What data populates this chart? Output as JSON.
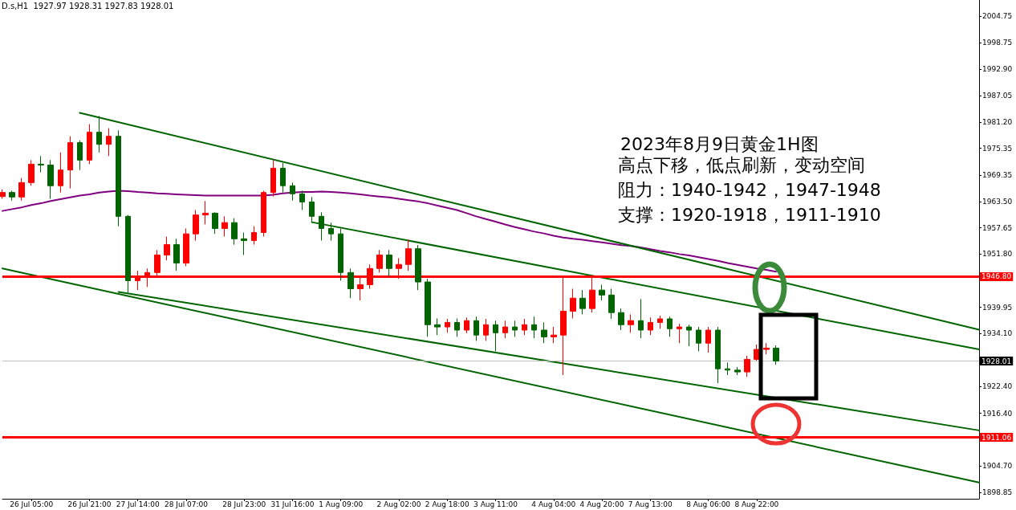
{
  "chart_data": {
    "type": "candlestick",
    "title": "2023年8月9日黄金1H图",
    "annotations": [
      "D.s,H1  1927.97 1928.31 1927.83 1928.01",
      "高点下移，低点刷新，变动空间",
      "阻力：1940-1942，1947-1948",
      "支撑：1920-1918，1911-1910"
    ],
    "categories": [
      null,
      null,
      null,
      "26 Jul 05:00",
      null,
      null,
      null,
      null,
      null,
      "26 Jul 21:00",
      null,
      null,
      null,
      null,
      "27 Jul 14:00",
      null,
      null,
      null,
      null,
      "28 Jul 07:00",
      null,
      null,
      null,
      null,
      null,
      "28 Jul 23:00",
      null,
      null,
      null,
      null,
      "31 Jul 16:00",
      null,
      null,
      null,
      null,
      "1 Aug 09:00",
      null,
      null,
      null,
      null,
      null,
      "2 Aug 02:00",
      null,
      null,
      null,
      null,
      "2 Aug 18:00",
      null,
      null,
      null,
      null,
      "3 Aug 11:00",
      null,
      null,
      null,
      null,
      null,
      "4 Aug 04:00",
      null,
      null,
      null,
      null,
      "4 Aug 20:00",
      null,
      null,
      null,
      null,
      "7 Aug 13:00",
      null,
      null,
      null,
      null,
      null,
      "8 Aug 06:00",
      null,
      null,
      null,
      null,
      "8 Aug 22:00",
      null,
      null,
      null,
      null,
      null,
      null,
      null,
      null,
      null,
      null,
      null,
      null,
      null,
      null,
      null,
      null,
      null,
      null,
      null,
      null,
      null,
      null,
      null
    ],
    "ohlc": [
      [
        1964.6,
        1966.2,
        1964.1,
        1965.5
      ],
      [
        1965.5,
        1965.9,
        1963.7,
        1964.5
      ],
      [
        1964.5,
        1968.7,
        1963.7,
        1967.7
      ],
      [
        1967.7,
        1972.7,
        1967.0,
        1971.8
      ],
      [
        1971.8,
        1973.6,
        1970.0,
        1971.6
      ],
      [
        1971.6,
        1972.7,
        1964.1,
        1967.0
      ],
      [
        1967.0,
        1974.4,
        1965.5,
        1970.5
      ],
      [
        1970.5,
        1978.0,
        1966.4,
        1976.6
      ],
      [
        1976.6,
        1977.1,
        1970.5,
        1972.7
      ],
      [
        1972.7,
        1980.7,
        1971.8,
        1978.9
      ],
      [
        1978.9,
        1982.5,
        1974.4,
        1976.2
      ],
      [
        1976.2,
        1979.8,
        1973.6,
        1978.0
      ],
      [
        1978.0,
        1979.3,
        1958.0,
        1960.2
      ],
      [
        1960.2,
        1960.5,
        1943.2,
        1945.9
      ],
      [
        1945.9,
        1948.1,
        1943.8,
        1946.8
      ],
      [
        1946.8,
        1948.6,
        1944.5,
        1947.7
      ],
      [
        1947.7,
        1952.7,
        1946.8,
        1951.6
      ],
      [
        1951.6,
        1955.7,
        1950.4,
        1953.9
      ],
      [
        1953.9,
        1955.2,
        1948.1,
        1949.8
      ],
      [
        1949.8,
        1957.5,
        1949.1,
        1956.3
      ],
      [
        1956.3,
        1961.6,
        1954.8,
        1960.5
      ],
      [
        1960.5,
        1963.6,
        1958.4,
        1960.9
      ],
      [
        1960.9,
        1961.1,
        1956.3,
        1957.5
      ],
      [
        1957.5,
        1960.2,
        1955.7,
        1958.8
      ],
      [
        1958.8,
        1959.8,
        1953.9,
        1955.2
      ],
      [
        1955.2,
        1956.6,
        1951.6,
        1954.8
      ],
      [
        1954.8,
        1958.0,
        1953.9,
        1956.6
      ],
      [
        1956.6,
        1965.9,
        1955.7,
        1965.5
      ],
      [
        1965.5,
        1972.7,
        1964.6,
        1970.9
      ],
      [
        1970.9,
        1972.1,
        1965.5,
        1967.0
      ],
      [
        1967.0,
        1967.7,
        1963.7,
        1965.2
      ],
      [
        1965.2,
        1965.9,
        1961.6,
        1963.4
      ],
      [
        1963.4,
        1964.5,
        1958.8,
        1960.2
      ],
      [
        1960.2,
        1961.1,
        1954.8,
        1957.5
      ],
      [
        1957.5,
        1958.8,
        1954.8,
        1956.3
      ],
      [
        1956.3,
        1957.5,
        1945.9,
        1947.7
      ],
      [
        1947.7,
        1948.6,
        1942.0,
        1944.1
      ],
      [
        1944.1,
        1946.8,
        1941.5,
        1945.0
      ],
      [
        1945.0,
        1949.5,
        1944.1,
        1948.6
      ],
      [
        1948.6,
        1952.7,
        1947.7,
        1951.6
      ],
      [
        1951.6,
        1952.7,
        1946.8,
        1948.6
      ],
      [
        1948.6,
        1950.9,
        1946.3,
        1949.5
      ],
      [
        1949.5,
        1955.0,
        1948.1,
        1953.0
      ],
      [
        1953.0,
        1953.8,
        1943.8,
        1945.6
      ],
      [
        1945.6,
        1946.3,
        1933.4,
        1936.1
      ],
      [
        1936.1,
        1937.5,
        1933.8,
        1935.6
      ],
      [
        1935.6,
        1937.4,
        1934.3,
        1936.6
      ],
      [
        1936.6,
        1937.5,
        1933.4,
        1934.9
      ],
      [
        1934.9,
        1937.7,
        1934.2,
        1937.0
      ],
      [
        1937.0,
        1937.9,
        1932.5,
        1933.8
      ],
      [
        1933.8,
        1937.4,
        1932.5,
        1936.1
      ],
      [
        1936.1,
        1937.0,
        1930.2,
        1934.3
      ],
      [
        1934.3,
        1937.0,
        1933.1,
        1935.6
      ],
      [
        1935.6,
        1937.0,
        1933.4,
        1934.9
      ],
      [
        1934.9,
        1937.4,
        1933.8,
        1936.1
      ],
      [
        1936.1,
        1937.9,
        1933.1,
        1934.9
      ],
      [
        1934.9,
        1936.6,
        1932.0,
        1933.4
      ],
      [
        1933.4,
        1935.6,
        1932.0,
        1933.8
      ],
      [
        1933.8,
        1947.0,
        1924.9,
        1939.1
      ],
      [
        1939.1,
        1944.1,
        1937.5,
        1942.0
      ],
      [
        1942.0,
        1943.8,
        1938.4,
        1939.7
      ],
      [
        1939.7,
        1946.8,
        1938.8,
        1943.8
      ],
      [
        1943.8,
        1945.0,
        1941.5,
        1942.7
      ],
      [
        1942.7,
        1944.1,
        1937.4,
        1938.8
      ],
      [
        1938.8,
        1939.7,
        1934.9,
        1936.1
      ],
      [
        1936.1,
        1938.4,
        1934.3,
        1937.0
      ],
      [
        1937.0,
        1941.8,
        1933.1,
        1934.9
      ],
      [
        1934.9,
        1937.7,
        1933.8,
        1936.6
      ],
      [
        1936.6,
        1938.1,
        1935.2,
        1937.4
      ],
      [
        1937.4,
        1937.9,
        1933.4,
        1935.2
      ],
      [
        1935.2,
        1936.3,
        1932.0,
        1935.6
      ],
      [
        1935.6,
        1936.1,
        1931.3,
        1934.9
      ],
      [
        1934.9,
        1935.6,
        1930.2,
        1932.0
      ],
      [
        1932.0,
        1935.6,
        1929.9,
        1934.9
      ],
      [
        1934.9,
        1935.6,
        1923.1,
        1926.3
      ],
      [
        1926.3,
        1927.7,
        1924.9,
        1926.0
      ],
      [
        1926.0,
        1926.7,
        1924.9,
        1925.6
      ],
      [
        1925.6,
        1929.2,
        1924.5,
        1928.4
      ],
      [
        1928.4,
        1931.7,
        1928.1,
        1930.6
      ],
      [
        1930.6,
        1932.0,
        1929.5,
        1930.9
      ],
      [
        1930.9,
        1931.5,
        1927.2,
        1928.01
      ],
      null,
      null,
      null,
      null,
      null,
      null,
      null,
      null,
      null,
      null,
      null,
      null,
      null,
      null,
      null,
      null,
      null,
      null,
      null,
      null,
      null
    ],
    "colors": [
      "#ff0000",
      "#006400",
      "#ff0000",
      "#ff0000",
      "#006400",
      "#006400",
      "#ff0000",
      "#ff0000",
      "#006400",
      "#ff0000",
      "#006400",
      "#ff0000",
      "#006400",
      "#006400",
      "#ff0000",
      "#ff0000",
      "#ff0000",
      "#ff0000",
      "#006400",
      "#ff0000",
      "#ff0000",
      "#ff0000",
      "#006400",
      "#ff0000",
      "#006400",
      "#006400",
      "#ff0000",
      "#ff0000",
      "#ff0000",
      "#006400",
      "#006400",
      "#006400",
      "#006400",
      "#006400",
      "#006400",
      "#006400",
      "#006400",
      "#ff0000",
      "#ff0000",
      "#ff0000",
      "#006400",
      "#ff0000",
      "#ff0000",
      "#006400",
      "#006400",
      "#006400",
      "#ff0000",
      "#006400",
      "#ff0000",
      "#006400",
      "#ff0000",
      "#006400",
      "#ff0000",
      "#006400",
      "#ff0000",
      "#006400",
      "#006400",
      "#ff0000",
      "#ff0000",
      "#ff0000",
      "#006400",
      "#ff0000",
      "#006400",
      "#006400",
      "#006400",
      "#ff0000",
      "#006400",
      "#ff0000",
      "#ff0000",
      "#006400",
      "#ff0000",
      "#006400",
      "#006400",
      "#ff0000",
      "#006400",
      "#006400",
      "#006400",
      "#ff0000",
      "#ff0000",
      "#ff0000",
      "#006400",
      null,
      null,
      null,
      null,
      null,
      null,
      null,
      null,
      null,
      null,
      null,
      null,
      null,
      null,
      null,
      null,
      null,
      null,
      null,
      null,
      null
    ],
    "series": [
      {
        "type": "line",
        "color": "#800080",
        "values": [
          1961.4,
          1961.8,
          1962.2,
          1962.7,
          1963.1,
          1963.6,
          1964.0,
          1964.4,
          1964.8,
          1965.1,
          1965.5,
          1965.7,
          1965.9,
          1965.8,
          1965.6,
          1965.5,
          1965.3,
          1965.2,
          1965.1,
          1965.0,
          1964.9,
          1964.8,
          1964.8,
          1964.8,
          1964.8,
          1964.8,
          1964.8,
          1964.8,
          1965.0,
          1965.3,
          1965.5,
          1965.6,
          1965.6,
          1965.7,
          1965.6,
          1965.5,
          1965.3,
          1965.1,
          1964.8,
          1964.6,
          1964.4,
          1964.1,
          1963.8,
          1963.5,
          1963.1,
          1962.6,
          1962.1,
          1961.6,
          1960.9,
          1960.2,
          1959.6,
          1959.0,
          1958.4,
          1957.8,
          1957.3,
          1956.8,
          1956.4,
          1955.9,
          1955.5,
          1955.2,
          1955.0,
          1954.7,
          1954.4,
          1954.1,
          1953.8,
          1953.6,
          1953.3,
          1952.9,
          1952.5,
          1952.2,
          1951.8,
          1951.5,
          1951.1,
          1950.7,
          1950.3,
          1949.8,
          1949.4,
          1949.0,
          1948.6,
          1948.3,
          1947.9,
          null,
          null,
          null,
          null,
          null,
          null,
          null,
          null,
          null,
          null,
          null,
          null,
          null,
          null,
          null,
          null,
          null,
          null,
          null,
          null,
          null
        ]
      },
      {
        "type": "line",
        "color": "#006400",
        "values": [
          null,
          null,
          null,
          null,
          null,
          null,
          null,
          null,
          1983.2,
          null,
          null,
          null,
          null,
          null,
          null,
          null,
          null,
          null,
          null,
          null,
          null,
          null,
          null,
          null,
          null,
          null,
          null,
          null,
          null,
          null,
          null,
          null,
          null,
          null,
          null,
          null,
          null,
          null,
          null,
          null,
          null,
          null,
          null,
          null,
          null,
          null,
          null,
          null,
          null,
          null,
          null,
          null,
          null,
          null,
          null,
          null,
          null,
          null,
          null,
          null,
          null,
          null,
          null,
          null,
          null,
          null,
          null,
          null,
          null,
          null,
          null,
          null,
          null,
          null,
          null,
          null,
          null,
          null,
          null,
          null,
          null,
          null,
          null,
          null,
          null,
          null,
          null,
          null,
          null,
          null,
          null,
          null,
          null,
          null,
          null,
          null,
          null,
          null,
          null,
          null,
          null,
          1935.0
        ]
      },
      {
        "type": "line",
        "color": "#006400",
        "values": [
          null,
          null,
          null,
          null,
          null,
          null,
          null,
          null,
          null,
          null,
          null,
          null,
          null,
          null,
          null,
          null,
          null,
          null,
          null,
          null,
          null,
          null,
          null,
          null,
          null,
          null,
          null,
          null,
          null,
          null,
          null,
          null,
          1958.9,
          null,
          null,
          null,
          null,
          null,
          null,
          null,
          null,
          null,
          null,
          null,
          null,
          null,
          null,
          null,
          null,
          null,
          null,
          null,
          null,
          null,
          null,
          null,
          null,
          null,
          null,
          null,
          null,
          null,
          null,
          null,
          null,
          null,
          null,
          null,
          null,
          null,
          null,
          null,
          null,
          null,
          null,
          null,
          null,
          null,
          null,
          null,
          null,
          null,
          null,
          null,
          null,
          null,
          null,
          null,
          null,
          null,
          null,
          null,
          null,
          null,
          null,
          null,
          null,
          null,
          null,
          null,
          null,
          1930.6
        ]
      },
      {
        "type": "line",
        "color": "#006400",
        "values": [
          null,
          null,
          null,
          null,
          null,
          null,
          null,
          null,
          null,
          null,
          null,
          null,
          1943.4,
          null,
          null,
          null,
          null,
          null,
          null,
          null,
          null,
          null,
          null,
          null,
          null,
          null,
          null,
          null,
          null,
          null,
          null,
          null,
          null,
          null,
          null,
          null,
          null,
          null,
          null,
          null,
          null,
          null,
          null,
          null,
          null,
          null,
          null,
          null,
          null,
          null,
          null,
          null,
          null,
          null,
          null,
          null,
          null,
          null,
          null,
          null,
          null,
          null,
          null,
          null,
          null,
          null,
          null,
          null,
          null,
          null,
          null,
          null,
          null,
          null,
          null,
          null,
          null,
          null,
          null,
          null,
          null,
          null,
          null,
          null,
          null,
          null,
          null,
          null,
          null,
          null,
          null,
          null,
          null,
          null,
          null,
          null,
          null,
          null,
          null,
          null,
          null,
          1912.6
        ]
      },
      {
        "type": "line",
        "color": "#006400",
        "values": [
          1948.6,
          null,
          null,
          null,
          null,
          null,
          null,
          null,
          null,
          null,
          null,
          null,
          null,
          null,
          null,
          null,
          null,
          null,
          null,
          null,
          null,
          null,
          null,
          null,
          null,
          null,
          null,
          null,
          null,
          null,
          null,
          null,
          null,
          null,
          null,
          null,
          null,
          null,
          null,
          null,
          null,
          null,
          null,
          null,
          null,
          null,
          null,
          null,
          null,
          null,
          null,
          null,
          null,
          null,
          null,
          null,
          null,
          null,
          null,
          null,
          null,
          null,
          null,
          null,
          null,
          null,
          null,
          null,
          null,
          null,
          null,
          null,
          null,
          null,
          null,
          null,
          null,
          null,
          null,
          null,
          null,
          null,
          null,
          null,
          null,
          null,
          null,
          null,
          null,
          null,
          null,
          null,
          null,
          null,
          null,
          null,
          null,
          null,
          null,
          null,
          null,
          1901.0
        ]
      }
    ],
    "ref_lines": [
      {
        "axis": "y",
        "value": 1946.8,
        "label": "1946.80",
        "color": "#ff0000"
      },
      {
        "axis": "y",
        "value": 1911.06,
        "label": "1911.06",
        "color": "#ff0000"
      },
      {
        "axis": "y",
        "value": 1928.01,
        "label": "1928.01",
        "color": "#c0c0c0"
      }
    ],
    "marker": "none",
    "ylim": [
      1897.4,
      2008.3
    ],
    "yticks": [
      {
        "value": 2004.75,
        "label": "2004.75"
      },
      {
        "value": 1998.75,
        "label": "1998.75"
      },
      {
        "value": 1992.9,
        "label": "1992.90"
      },
      {
        "value": 1987.05,
        "label": "1987.05"
      },
      {
        "value": 1981.2,
        "label": "1981.20"
      },
      {
        "value": 1975.35,
        "label": "1975.35"
      },
      {
        "value": 1969.35,
        "label": "1969.35"
      },
      {
        "value": 1963.5,
        "label": "1963.50"
      },
      {
        "value": 1957.65,
        "label": "1957.65"
      },
      {
        "value": 1951.8,
        "label": "1951.80"
      },
      {
        "value": 1939.95,
        "label": "1939.95"
      },
      {
        "value": 1934.1,
        "label": "1934.10"
      },
      {
        "value": 1922.4,
        "label": "1922.40"
      },
      {
        "value": 1916.4,
        "label": "1916.40"
      },
      {
        "value": 1904.7,
        "label": "1904.70"
      },
      {
        "value": 1898.85,
        "label": "1898.85"
      }
    ]
  }
}
